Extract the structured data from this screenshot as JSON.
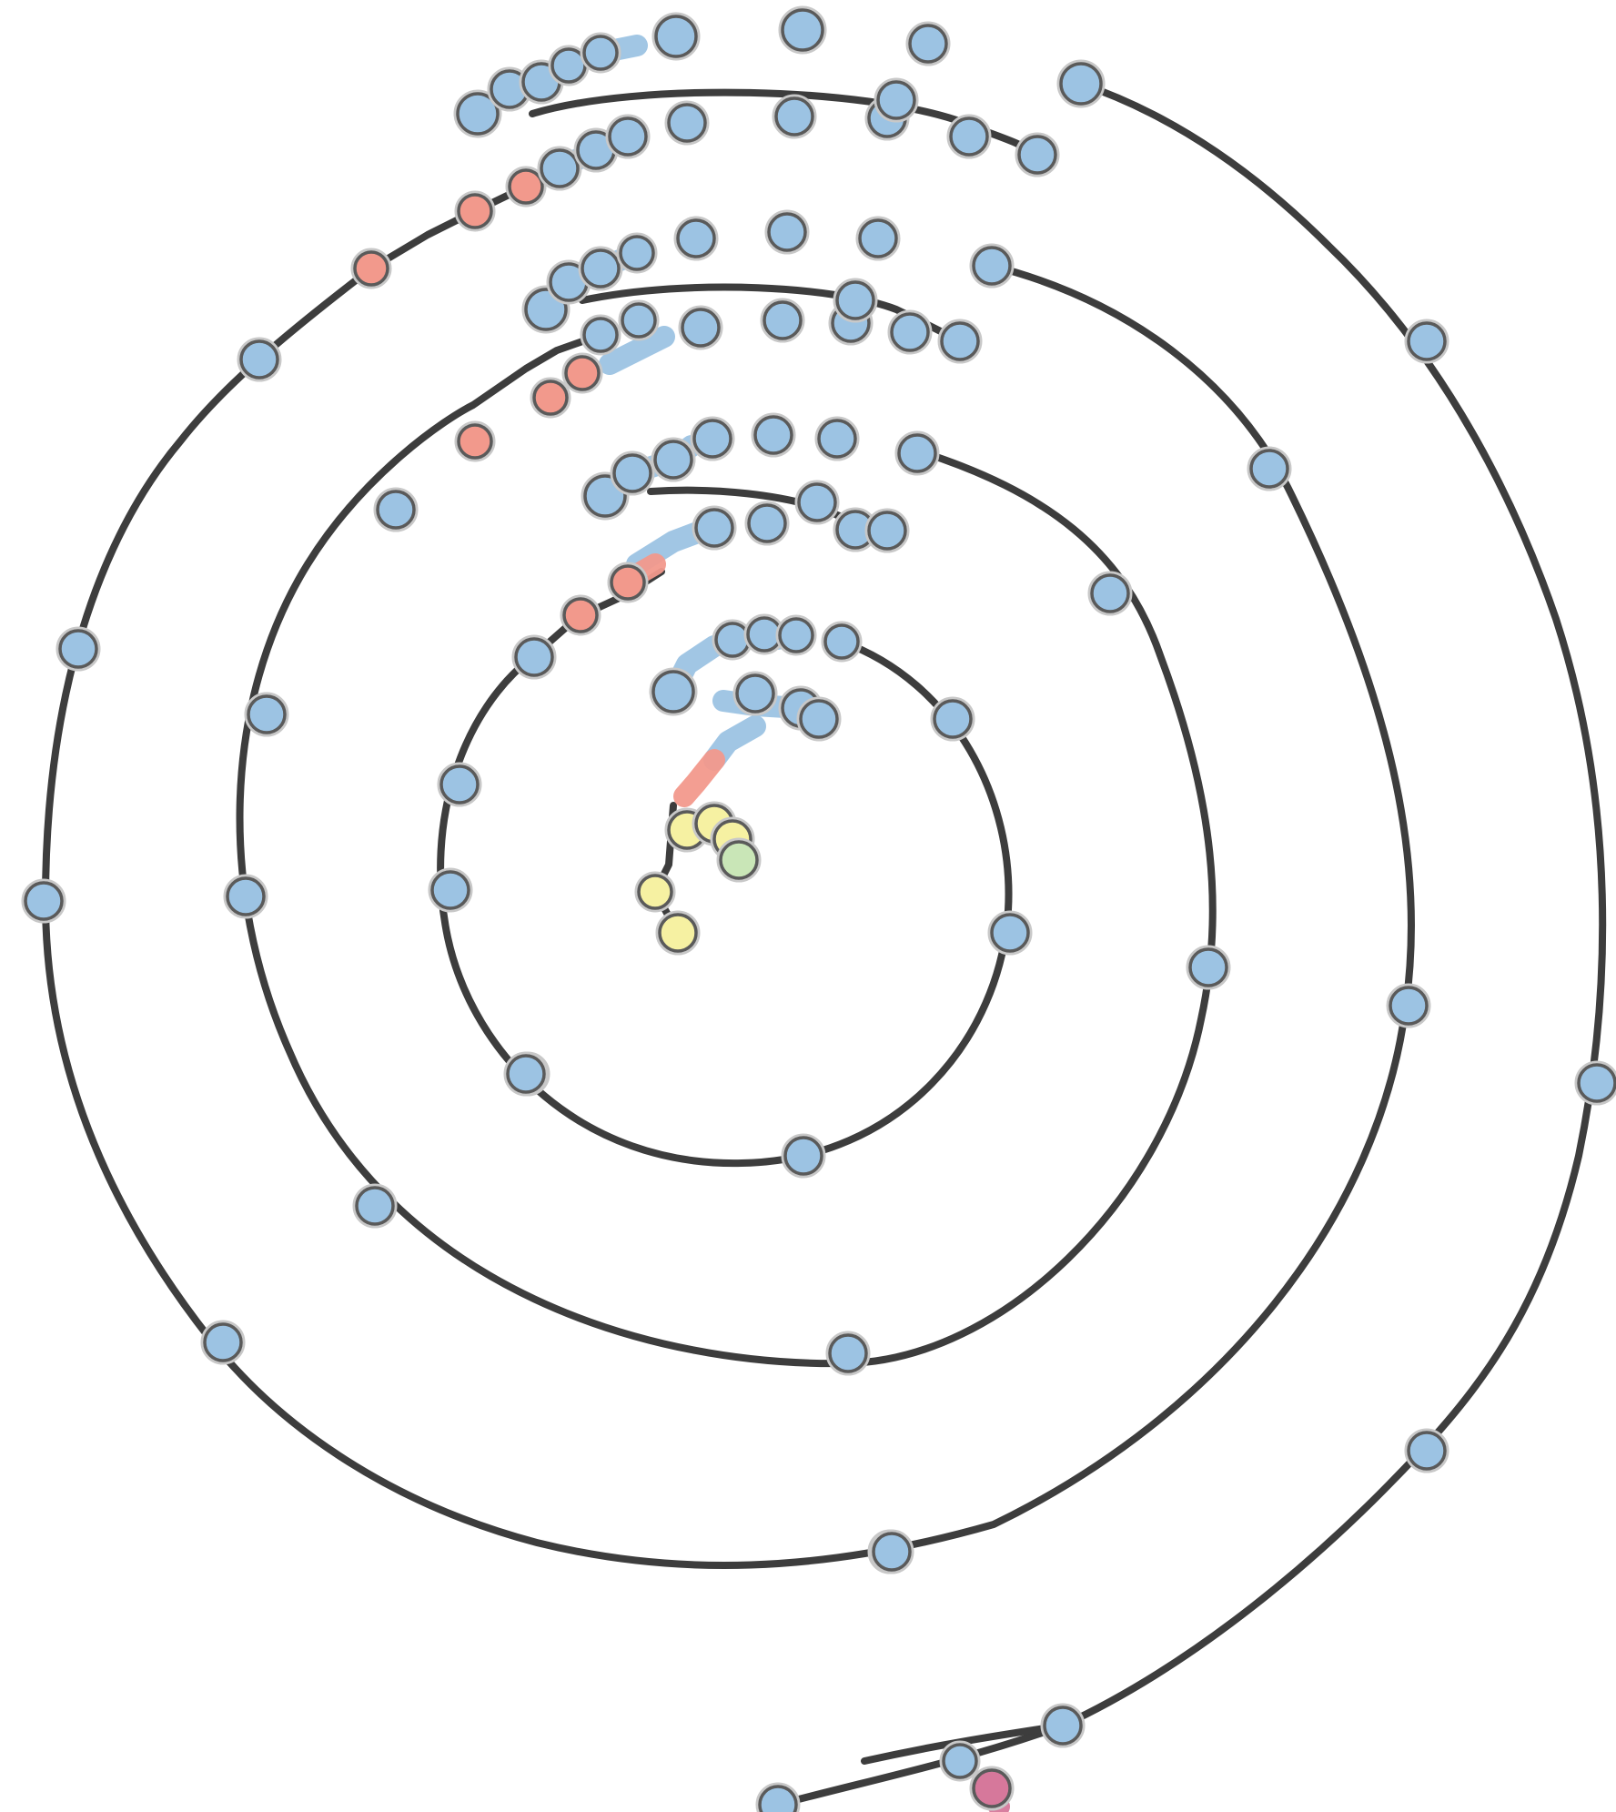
{
  "colors": {
    "background": "#ffffff",
    "track": "#3d3d3d",
    "node_default": "#9cc3e3",
    "node_highlight": "#f2998c",
    "node_core": "#f6f1a2",
    "node_core_edge": "#c9e6b7",
    "node_end": "#d6789b",
    "node_outline": "#5a5a5a"
  }
}
